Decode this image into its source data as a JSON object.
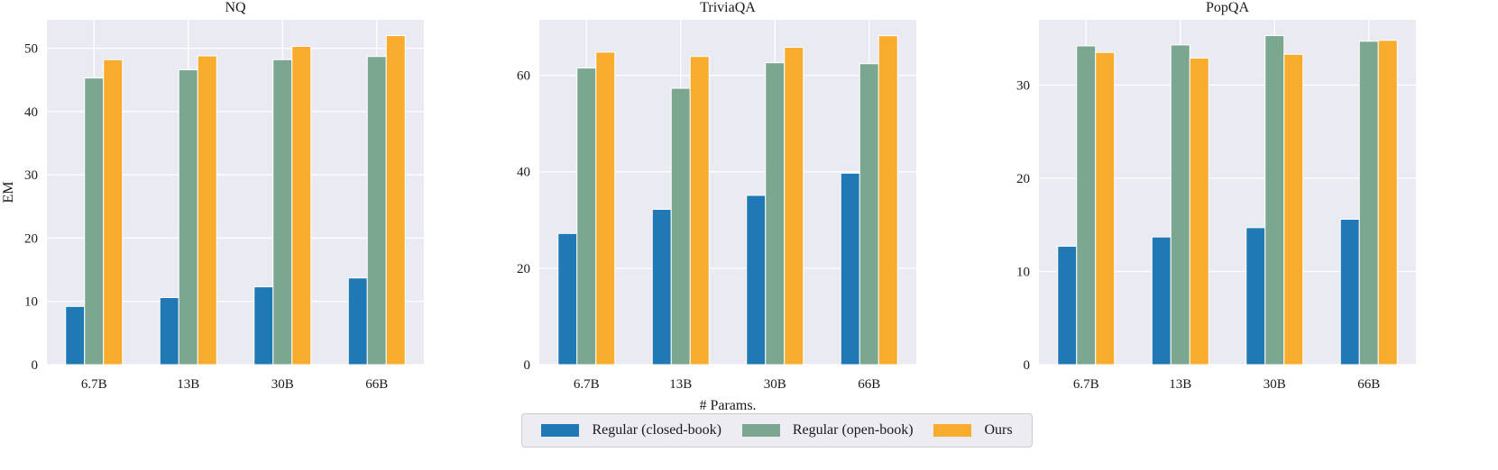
{
  "chart_data": [
    {
      "type": "bar",
      "title": "NQ",
      "xlabel": "",
      "ylabel": "EM",
      "categories": [
        "6.7B",
        "13B",
        "30B",
        "66B"
      ],
      "ylim": [
        0,
        54.5
      ],
      "yticks": [
        0,
        10,
        20,
        30,
        40,
        50
      ],
      "grid": true,
      "series": [
        {
          "name": "Regular (closed-book)",
          "values": [
            9.2,
            10.6,
            12.3,
            13.7
          ]
        },
        {
          "name": "Regular (open-book)",
          "values": [
            45.3,
            46.6,
            48.2,
            48.7
          ]
        },
        {
          "name": "Ours",
          "values": [
            48.2,
            48.8,
            50.3,
            52.0
          ]
        }
      ]
    },
    {
      "type": "bar",
      "title": "TriviaQA",
      "xlabel": "# Params.",
      "ylabel": "",
      "categories": [
        "6.7B",
        "13B",
        "30B",
        "66B"
      ],
      "ylim": [
        0,
        71.5
      ],
      "yticks": [
        0,
        20,
        40,
        60
      ],
      "grid": true,
      "series": [
        {
          "name": "Regular (closed-book)",
          "values": [
            27.2,
            32.2,
            35.1,
            39.7
          ]
        },
        {
          "name": "Regular (open-book)",
          "values": [
            61.5,
            57.3,
            62.6,
            62.4
          ]
        },
        {
          "name": "Ours",
          "values": [
            64.8,
            63.9,
            65.8,
            68.2
          ]
        }
      ]
    },
    {
      "type": "bar",
      "title": "PopQA",
      "xlabel": "",
      "ylabel": "",
      "categories": [
        "6.7B",
        "13B",
        "30B",
        "66B"
      ],
      "ylim": [
        0,
        37
      ],
      "yticks": [
        0,
        10,
        20,
        30
      ],
      "grid": true,
      "series": [
        {
          "name": "Regular (closed-book)",
          "values": [
            12.7,
            13.7,
            14.7,
            15.6
          ]
        },
        {
          "name": "Regular (open-book)",
          "values": [
            34.2,
            34.3,
            35.3,
            34.7
          ]
        },
        {
          "name": "Ours",
          "values": [
            33.5,
            32.9,
            33.3,
            34.8
          ]
        }
      ]
    }
  ],
  "legend": {
    "placement": "bottom-center",
    "items": [
      {
        "label": "Regular (closed-book)",
        "color": "#2078b4"
      },
      {
        "label": "Regular (open-book)",
        "color": "#7ba690"
      },
      {
        "label": "Ours",
        "color": "#f8ac2e"
      }
    ]
  },
  "colors": {
    "plot_background": "#eaeaf2",
    "grid": "#ffffff"
  }
}
